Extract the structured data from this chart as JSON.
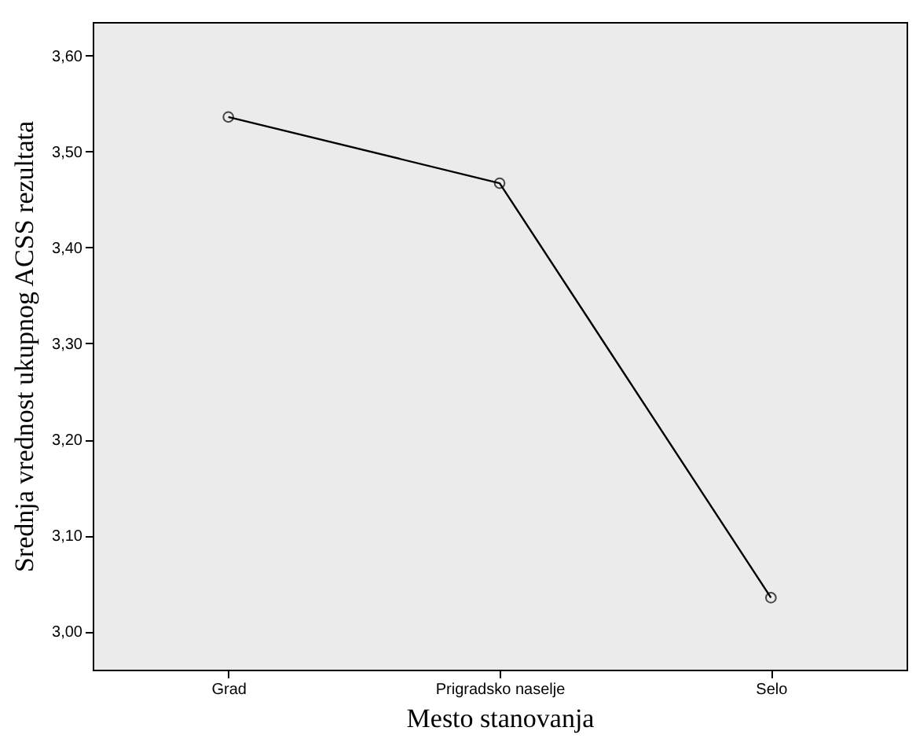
{
  "chart_data": {
    "type": "line",
    "xlabel": "Mesto stanovanja",
    "ylabel": "Srednja vrednost ukupnog ACSS rezultata",
    "categories": [
      "Grad",
      "Prigradsko naselje",
      "Selo"
    ],
    "series": [
      {
        "color": "#000000",
        "values": [
          3.536,
          3.467,
          3.035
        ]
      }
    ],
    "ylim": [
      2.96,
      3.635
    ],
    "yticks": [
      {
        "value": 3.0,
        "label": "3,00"
      },
      {
        "value": 3.1,
        "label": "3,10"
      },
      {
        "value": 3.2,
        "label": "3,20"
      },
      {
        "value": 3.3,
        "label": "3,30"
      },
      {
        "value": 3.4,
        "label": "3,40"
      },
      {
        "value": 3.5,
        "label": "3,50"
      },
      {
        "value": 3.6,
        "label": "3,60"
      }
    ],
    "marker": "circle",
    "grid": false,
    "legend": false
  }
}
